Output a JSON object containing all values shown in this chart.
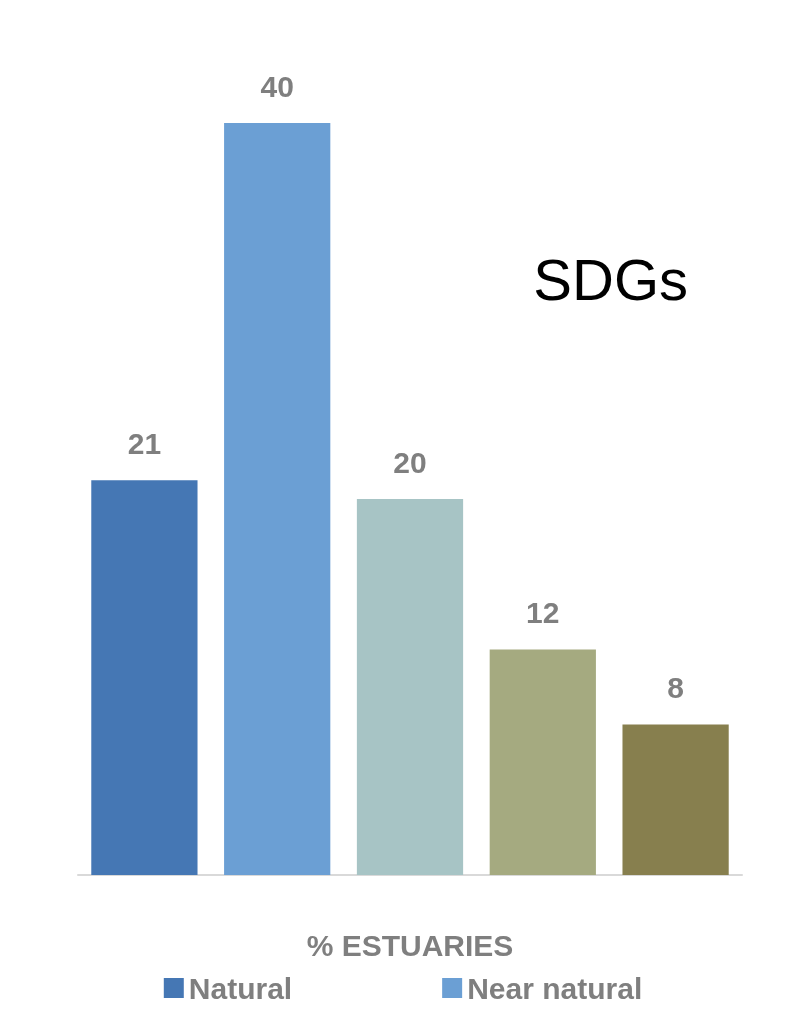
{
  "chart_data": {
    "type": "bar",
    "categories": [
      null,
      null,
      null,
      null,
      null
    ],
    "xlabel": "% ESTUARIES",
    "stacked": true,
    "series": [
      {
        "name": "Natural",
        "color": "#4577b4",
        "values": [
          21,
          null,
          null,
          null,
          null
        ]
      },
      {
        "name": "Near natural",
        "color": "#6b9fd4",
        "values": [
          null,
          40,
          null,
          null,
          null
        ]
      },
      {
        "color": "#a7c4c5",
        "values": [
          null,
          null,
          20,
          null,
          null
        ]
      },
      {
        "color": "#a5aa80",
        "values": [
          null,
          null,
          null,
          12,
          null
        ]
      },
      {
        "color": "#877f4e",
        "values": [
          null,
          null,
          null,
          null,
          8
        ]
      }
    ],
    "data_labels": true,
    "legend": "bottom",
    "annotations": [
      "SDGs"
    ]
  }
}
